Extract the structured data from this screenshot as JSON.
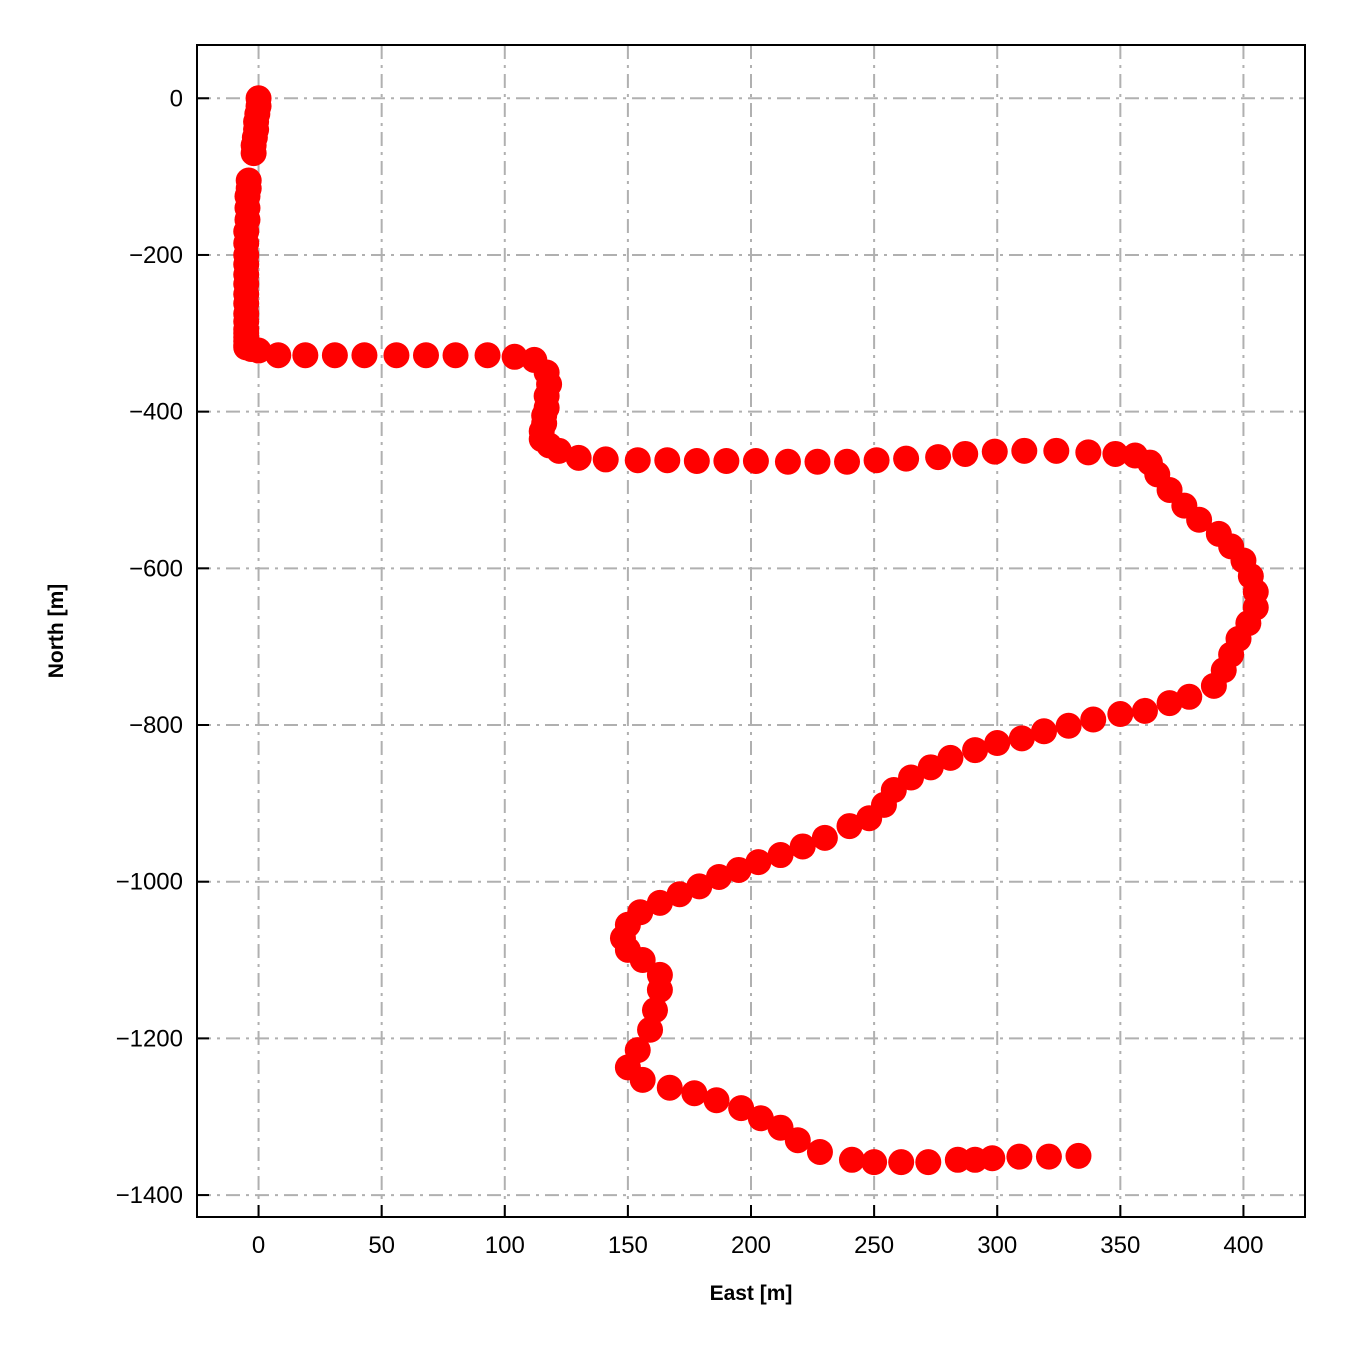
{
  "chart_data": {
    "type": "scatter",
    "title": "",
    "xlabel": "East [m]",
    "ylabel": "North [m]",
    "xlim": [
      -25,
      425
    ],
    "ylim": [
      -1428,
      68
    ],
    "xticks": [
      0,
      50,
      100,
      150,
      200,
      250,
      300,
      350,
      400
    ],
    "yticks": [
      0,
      -200,
      -400,
      -600,
      -800,
      -1000,
      -1200,
      -1400
    ],
    "xtick_labels": [
      "0",
      "50",
      "100",
      "150",
      "200",
      "250",
      "300",
      "350",
      "400"
    ],
    "ytick_labels": [
      "0",
      "−200",
      "−400",
      "−600",
      "−800",
      "−1000",
      "−1200",
      "−1400"
    ],
    "grid": true,
    "grid_style": "dash-dot",
    "grid_color": "#b0b0b0",
    "marker_color": "#ff0000",
    "series": [
      {
        "x": [
          0,
          0,
          -0.5,
          -1,
          -1,
          -1.5,
          -2,
          -2,
          -4,
          -4,
          -4.5,
          -4.5,
          -4.5,
          -5,
          -5,
          -5,
          -5,
          -5,
          -5,
          -5,
          -5,
          -5,
          -5,
          -5,
          -5,
          -5,
          -5,
          -5,
          -5,
          -3,
          0,
          8,
          19,
          31,
          43,
          56,
          68,
          80,
          93,
          104,
          112,
          117,
          118,
          117,
          117,
          116,
          116,
          115,
          115,
          118,
          122,
          130,
          141,
          154,
          166,
          178,
          190,
          202,
          215,
          227,
          239,
          251,
          263,
          276,
          287,
          299,
          311,
          324,
          337,
          348,
          356,
          362,
          365,
          370,
          376,
          382,
          390,
          395,
          400,
          403,
          405,
          405,
          402,
          398,
          395,
          392,
          388,
          378,
          370,
          360,
          350,
          339,
          329,
          319,
          310,
          300,
          291,
          281,
          273,
          265,
          258,
          254,
          248,
          240,
          230,
          221,
          212,
          203,
          195,
          187,
          179,
          171,
          163,
          155,
          150,
          148,
          150,
          156,
          163,
          163,
          161,
          159,
          154,
          150,
          156,
          167,
          177,
          186,
          196,
          204,
          212,
          219,
          228,
          241,
          250,
          261,
          272,
          284,
          291,
          298,
          309,
          321,
          333
        ],
        "y": [
          0,
          -10,
          -20,
          -30,
          -40,
          -50,
          -60,
          -70,
          -105,
          -115,
          -125,
          -140,
          -155,
          -170,
          -185,
          -200,
          -212,
          -225,
          -237,
          -250,
          -262,
          -275,
          -285,
          -295,
          -300,
          -305,
          -310,
          -315,
          -318,
          -320,
          -322,
          -328,
          -328,
          -328,
          -328,
          -328,
          -328,
          -328,
          -328,
          -330,
          -334,
          -350,
          -365,
          -380,
          -395,
          -405,
          -415,
          -425,
          -435,
          -443,
          -450,
          -459,
          -461,
          -462,
          -462,
          -463,
          -463,
          -463,
          -464,
          -464,
          -464,
          -462,
          -460,
          -458,
          -454,
          -451,
          -450,
          -450,
          -452,
          -454,
          -456,
          -465,
          -480,
          -500,
          -520,
          -538,
          -556,
          -572,
          -590,
          -610,
          -630,
          -650,
          -670,
          -690,
          -710,
          -730,
          -750,
          -764,
          -772,
          -782,
          -786,
          -793,
          -801,
          -808,
          -817,
          -823,
          -832,
          -842,
          -854,
          -867,
          -883,
          -902,
          -919,
          -929,
          -944,
          -955,
          -966,
          -975,
          -985,
          -994,
          -1006,
          -1016,
          -1027,
          -1039,
          -1055,
          -1072,
          -1087,
          -1100,
          -1119,
          -1138,
          -1164,
          -1189,
          -1215,
          -1237,
          -1253,
          -1263,
          -1270,
          -1279,
          -1289,
          -1302,
          -1314,
          -1330,
          -1345,
          -1355,
          -1358,
          -1358,
          -1358,
          -1355,
          -1355,
          -1353,
          -1351,
          -1351,
          -1350
        ]
      }
    ]
  }
}
